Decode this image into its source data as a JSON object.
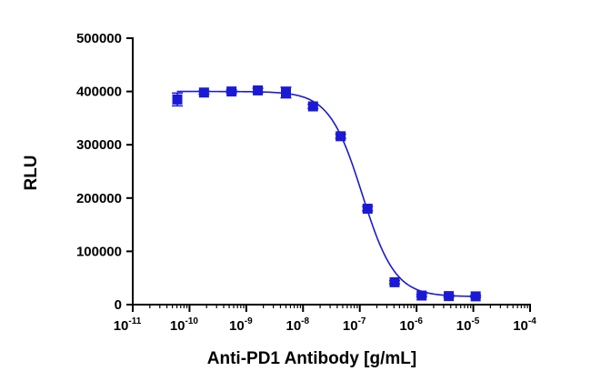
{
  "chart_data": {
    "type": "scatter",
    "xlabel": "Anti-PD1 Antibody [g/mL]",
    "ylabel": "RLU",
    "x_scale": "log",
    "xlim": [
      1e-11,
      0.0001
    ],
    "ylim": [
      0,
      500000
    ],
    "x_ticks": [
      {
        "base": "10",
        "exp": "-11",
        "value": 1e-11
      },
      {
        "base": "10",
        "exp": "-10",
        "value": 1e-10
      },
      {
        "base": "10",
        "exp": "-9",
        "value": 1e-09
      },
      {
        "base": "10",
        "exp": "-8",
        "value": 1e-08
      },
      {
        "base": "10",
        "exp": "-7",
        "value": 1e-07
      },
      {
        "base": "10",
        "exp": "-6",
        "value": 1e-06
      },
      {
        "base": "10",
        "exp": "-5",
        "value": 1e-05
      },
      {
        "base": "10",
        "exp": "-4",
        "value": 0.0001
      }
    ],
    "y_ticks": [
      {
        "label": "0",
        "value": 0
      },
      {
        "label": "100000",
        "value": 100000
      },
      {
        "label": "200000",
        "value": 200000
      },
      {
        "label": "300000",
        "value": 300000
      },
      {
        "label": "400000",
        "value": 400000
      },
      {
        "label": "500000",
        "value": 500000
      }
    ],
    "grid": false,
    "color": "#1a1ad6",
    "points": [
      {
        "x": 6.1e-11,
        "y": 385000,
        "err": 12000
      },
      {
        "x": 1.8e-10,
        "y": 398000,
        "err": 3000
      },
      {
        "x": 5.5e-10,
        "y": 400000,
        "err": 3000
      },
      {
        "x": 1.6e-09,
        "y": 402000,
        "err": 4000
      },
      {
        "x": 5e-09,
        "y": 398000,
        "err": 10000
      },
      {
        "x": 1.5e-08,
        "y": 372000,
        "err": 4000
      },
      {
        "x": 4.6e-08,
        "y": 316000,
        "err": 4000
      },
      {
        "x": 1.37e-07,
        "y": 180000,
        "err": 4000
      },
      {
        "x": 4.1e-07,
        "y": 42000,
        "err": 3000
      },
      {
        "x": 1.23e-06,
        "y": 17000,
        "err": 2000
      },
      {
        "x": 3.7e-06,
        "y": 16000,
        "err": 2000
      },
      {
        "x": 1.1e-05,
        "y": 15500,
        "err": 2000
      }
    ],
    "fit": {
      "model": "4PL",
      "top": 400000,
      "bottom": 15000,
      "ec50": 1.1e-07,
      "hill": 1.5,
      "x_range": [
        6e-11,
        1.1e-05
      ]
    }
  }
}
